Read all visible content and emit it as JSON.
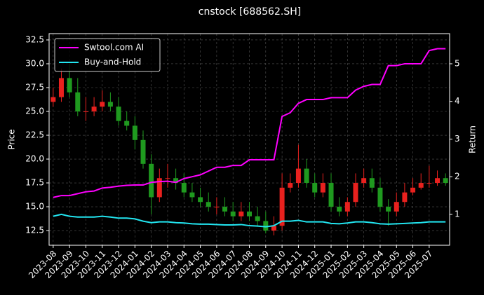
{
  "chart_data": {
    "type": "candlestick",
    "title": "cnstock [688562.SH]",
    "ylabel": "Price",
    "y2label": "Return",
    "categories": [
      "2023-08",
      null,
      "2023-09",
      null,
      "2023-10",
      null,
      "2023-11",
      null,
      "2023-12",
      null,
      "2024-01",
      null,
      "2024-02",
      null,
      "2024-03",
      null,
      "2024-04",
      null,
      "2024-05",
      null,
      "2024-06",
      null,
      "2024-07",
      null,
      "2024-08",
      null,
      "2024-09",
      null,
      "2024-10",
      null,
      "2024-11",
      null,
      "2024-12",
      null,
      "2025-01",
      null,
      "2025-02",
      null,
      "2025-03",
      null,
      "2025-04",
      null,
      "2025-05",
      null,
      "2025-06",
      null,
      "2025-07",
      null,
      null
    ],
    "open": [
      26,
      26.5,
      28.5,
      27,
      25,
      25,
      25.5,
      26,
      25.5,
      24,
      23.5,
      22,
      19.5,
      16,
      18,
      18,
      17.5,
      16.5,
      16,
      15.5,
      15,
      15,
      14.5,
      14,
      14.5,
      14,
      13.5,
      12.5,
      13,
      17,
      17.5,
      19,
      17.5,
      16.5,
      17.5,
      15,
      14.5,
      15.5,
      17.5,
      18,
      17,
      15,
      14.5,
      15.5,
      16.5,
      17,
      17.5,
      17.5,
      18
    ],
    "high": [
      27.5,
      29.5,
      30,
      28.5,
      26.5,
      26.5,
      27.2,
      27,
      26.5,
      25,
      24.5,
      23,
      20.5,
      19,
      19.5,
      19,
      18.5,
      17.5,
      17,
      16.5,
      16,
      16,
      15.5,
      15.5,
      15.5,
      15,
      14.5,
      14,
      18.5,
      18.5,
      21.5,
      20,
      18.5,
      18.5,
      18.5,
      16,
      16,
      18.5,
      19,
      19,
      18,
      15.8,
      16.5,
      17.5,
      18,
      18.5,
      19.3,
      18.8,
      18.5
    ],
    "low": [
      25.5,
      26,
      26.5,
      24.5,
      24,
      24.5,
      25,
      25,
      23.5,
      23,
      21,
      19,
      14.2,
      15.5,
      17,
      16.8,
      16,
      15.5,
      15,
      14.5,
      14.2,
      14,
      13.5,
      13.5,
      13.5,
      13,
      12.2,
      12,
      12.5,
      16.5,
      17,
      17,
      16,
      16,
      14.5,
      14,
      14,
      15,
      17,
      16.5,
      14.5,
      13,
      14,
      15,
      16.2,
      16.8,
      17,
      17.2,
      17.2
    ],
    "close": [
      26.5,
      28.5,
      27,
      25,
      25,
      25.5,
      26,
      25.5,
      24,
      23.5,
      22,
      19.5,
      16,
      18,
      18,
      17.5,
      16.5,
      16,
      15.5,
      15,
      15,
      14.5,
      14,
      14.5,
      14,
      13.5,
      12.5,
      13,
      17,
      17.5,
      19,
      17.5,
      16.5,
      17.5,
      15,
      14.5,
      15.5,
      17.5,
      18,
      17,
      15,
      14.5,
      15.5,
      16.5,
      17,
      17.5,
      17.5,
      18,
      17.5
    ],
    "up_color": "#e8211e",
    "down_color": "#1f9a1f",
    "series": [
      {
        "name": "Swtool.com AI",
        "color": "#ff00ff",
        "axis": "y2",
        "values": [
          1.45,
          1.5,
          1.5,
          1.55,
          1.6,
          1.62,
          1.7,
          1.72,
          1.75,
          1.77,
          1.78,
          1.78,
          1.85,
          1.87,
          1.88,
          1.85,
          1.95,
          2.0,
          2.05,
          2.15,
          2.25,
          2.25,
          2.3,
          2.3,
          2.45,
          2.45,
          2.45,
          2.45,
          3.6,
          3.7,
          3.95,
          4.05,
          4.05,
          4.05,
          4.1,
          4.1,
          4.1,
          4.3,
          4.4,
          4.45,
          4.45,
          4.95,
          4.95,
          5.0,
          5.0,
          5.0,
          5.35,
          5.4,
          5.4
        ]
      },
      {
        "name": "Buy-and-Hold",
        "color": "#22e5f0",
        "axis": "y2",
        "values": [
          0.95,
          1.0,
          0.95,
          0.93,
          0.93,
          0.93,
          0.95,
          0.93,
          0.9,
          0.9,
          0.88,
          0.82,
          0.78,
          0.8,
          0.8,
          0.78,
          0.77,
          0.75,
          0.74,
          0.74,
          0.73,
          0.72,
          0.72,
          0.73,
          0.7,
          0.69,
          0.67,
          0.7,
          0.82,
          0.82,
          0.84,
          0.8,
          0.8,
          0.8,
          0.76,
          0.75,
          0.77,
          0.8,
          0.8,
          0.78,
          0.75,
          0.74,
          0.75,
          0.76,
          0.77,
          0.78,
          0.8,
          0.8,
          0.8
        ]
      }
    ],
    "ylim": [
      10.96,
      33.16
    ],
    "yticks": [
      12.5,
      {
        "value": 15,
        "label": "15.0"
      },
      17.5,
      {
        "value": 20,
        "label": "20.0"
      },
      22.5,
      {
        "value": 25,
        "label": "25.0"
      },
      27.5,
      {
        "value": 30,
        "label": "30.0"
      },
      32.5
    ],
    "y2lim": [
      0.18,
      5.8
    ],
    "y2ticks": [
      1,
      2,
      3,
      4,
      5
    ],
    "grid": true,
    "legend": "upper left"
  }
}
